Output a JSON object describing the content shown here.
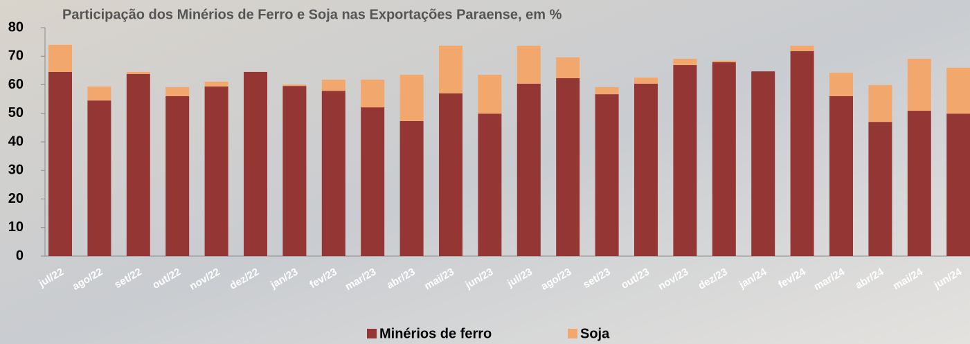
{
  "chart_data": {
    "type": "stacked_bar",
    "title": "Participação dos Minérios de Ferro e Soja nas Exportações Paraense, em %",
    "categories": [
      "jul/22",
      "ago/22",
      "set/22",
      "out/22",
      "nov/22",
      "dez/22",
      "jan/23",
      "fev/23",
      "mar/23",
      "abr/23",
      "mai/23",
      "jun/23",
      "jul/23",
      "ago/23",
      "set/23",
      "out/23",
      "nov/23",
      "dez/23",
      "jan/24",
      "fev/24",
      "mar/24",
      "abr/24",
      "mai/24",
      "jun/24"
    ],
    "series": [
      {
        "name": "Minérios de ferro",
        "color": "#943634",
        "values": [
          64.5,
          54.5,
          63.8,
          56,
          59.4,
          64.5,
          59.6,
          57.9,
          52.1,
          47.3,
          57,
          49.9,
          60.4,
          62.3,
          56.7,
          60.4,
          66.9,
          67.9,
          64.7,
          71.8,
          56,
          47,
          50.9,
          49.9
        ]
      },
      {
        "name": "Soja",
        "color": "#f2a86c",
        "values": [
          9.5,
          4.9,
          0.7,
          3.2,
          1.7,
          0,
          0.5,
          3.9,
          9.7,
          16.2,
          16.7,
          13.6,
          13.3,
          7.3,
          2.5,
          2.1,
          2.2,
          0.5,
          0,
          1.9,
          8.2,
          12.9,
          18.2,
          16.1
        ]
      }
    ],
    "ylim": [
      0,
      80
    ],
    "yticks": [
      0,
      10,
      20,
      30,
      40,
      50,
      60,
      70,
      80
    ],
    "legend": "bottom"
  }
}
